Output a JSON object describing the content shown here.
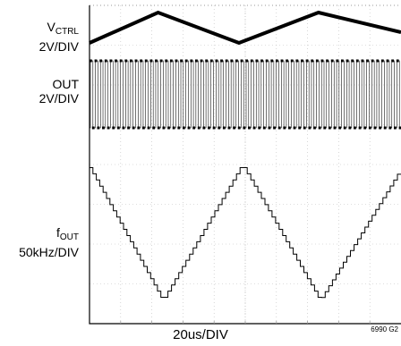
{
  "labels": {
    "vctrl_main": "V",
    "vctrl_sub": "CTRL",
    "vctrl_scale": "2V/DIV",
    "out_main": "OUT",
    "out_scale": "2V/DIV",
    "fout_main": "f",
    "fout_sub": "OUT",
    "fout_scale": "50kHz/DIV",
    "xlabel": "20us/DIV",
    "figref": "6990 G2"
  },
  "chart_data": {
    "type": "line",
    "xlabel": "20us/DIV",
    "x_unit": "us",
    "xlim": [
      0,
      200
    ],
    "grid": true,
    "divisions": {
      "x": 10,
      "y": 8
    },
    "series": [
      {
        "name": "VCTRL",
        "scale": "2V/DIV",
        "waveform": "triangle",
        "x": [
          0,
          44,
          96,
          147,
          200
        ],
        "y": [
          0,
          1,
          0,
          1,
          0.35
        ]
      },
      {
        "name": "OUT",
        "scale": "2V/DIV",
        "waveform": "square",
        "periods_visible": 62
      },
      {
        "name": "fOUT",
        "scale": "50kHz/DIV",
        "waveform": "staircase triangle",
        "x": [
          0,
          48,
          99,
          149,
          200
        ],
        "y": [
          1,
          0,
          1,
          0,
          0.95
        ]
      }
    ]
  },
  "colors": {
    "trace": "#000000",
    "grid": "#bdbdbd",
    "background": "#ffffff"
  }
}
